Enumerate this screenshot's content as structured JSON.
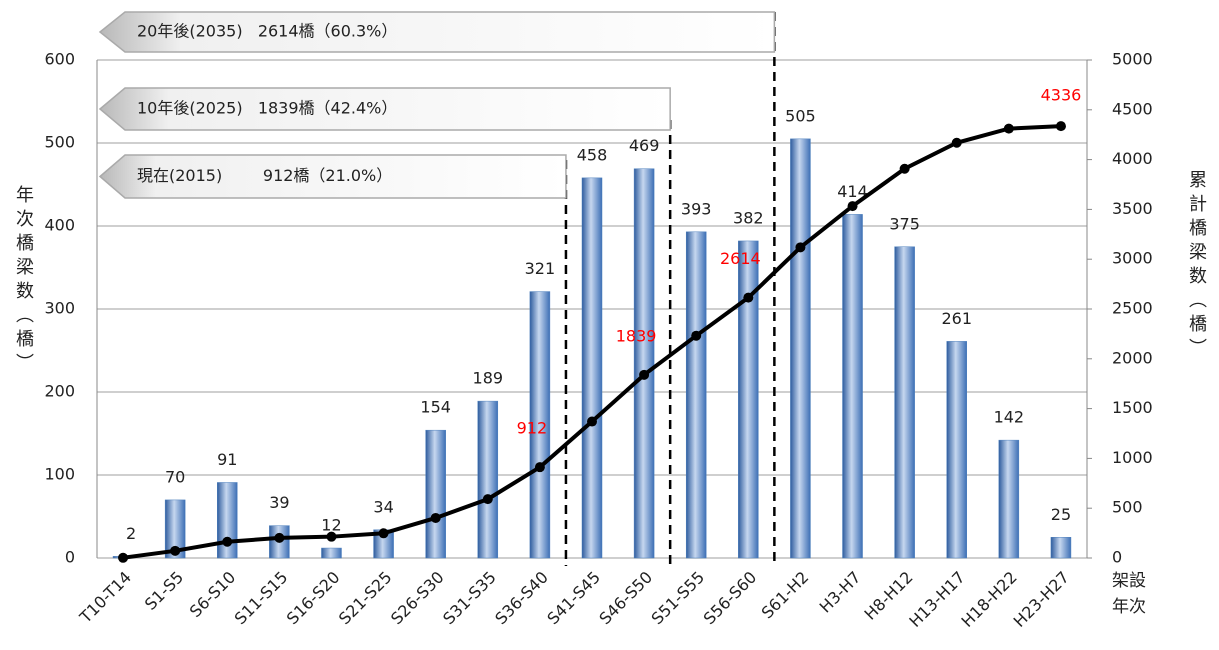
{
  "chart_data": {
    "type": "bar",
    "categories": [
      "T10-T14",
      "S1-S5",
      "S6-S10",
      "S11-S15",
      "S16-S20",
      "S21-S25",
      "S26-S30",
      "S31-S35",
      "S36-S40",
      "S41-S45",
      "S46-S50",
      "S51-S55",
      "S56-S60",
      "S61-H2",
      "H3-H7",
      "H8-H12",
      "H13-H17",
      "H18-H22",
      "H23-H27"
    ],
    "series": [
      {
        "type": "bar",
        "color": "#4f81bd",
        "values": [
          2,
          70,
          91,
          39,
          12,
          34,
          154,
          189,
          321,
          458,
          469,
          393,
          382,
          505,
          414,
          375,
          261,
          142,
          25
        ]
      },
      {
        "type": "line",
        "axis": "y2",
        "color": "#000000",
        "values": [
          2,
          72,
          163,
          202,
          214,
          248,
          402,
          591,
          912,
          1370,
          1839,
          2232,
          2614,
          3119,
          3533,
          3908,
          4169,
          4311,
          4336
        ]
      }
    ],
    "ylim": [
      0,
      600
    ],
    "yticks": [
      0,
      100,
      200,
      300,
      400,
      500,
      600
    ],
    "y2lim": [
      0,
      5000
    ],
    "y2ticks": [
      0,
      500,
      1000,
      1500,
      2000,
      2500,
      3000,
      3500,
      4000,
      4500,
      5000
    ],
    "grid": true,
    "ylabel": "年次橋梁数（橋）",
    "y2label": "累計橋梁数（橋）",
    "xlabel": "架設年次",
    "annotations": [
      {
        "text": "912",
        "x": "S36-S40",
        "y": 912,
        "color": "#ff0000"
      },
      {
        "text": "1839",
        "x": "S46-S50",
        "y": 1839,
        "color": "#ff0000"
      },
      {
        "text": "2614",
        "x": "S56-S60",
        "y": 2614,
        "color": "#ff0000"
      },
      {
        "text": "4336",
        "x": "H23-H27",
        "y": 4336,
        "color": "#ff0000"
      }
    ],
    "callouts": [
      {
        "text": "20年後(2035)   2614橋（60.3%）"
      },
      {
        "text": "10年後(2025)   1839橋（42.4%）"
      },
      {
        "text": "現在(2015)        912橋（21.0%）"
      }
    ]
  }
}
